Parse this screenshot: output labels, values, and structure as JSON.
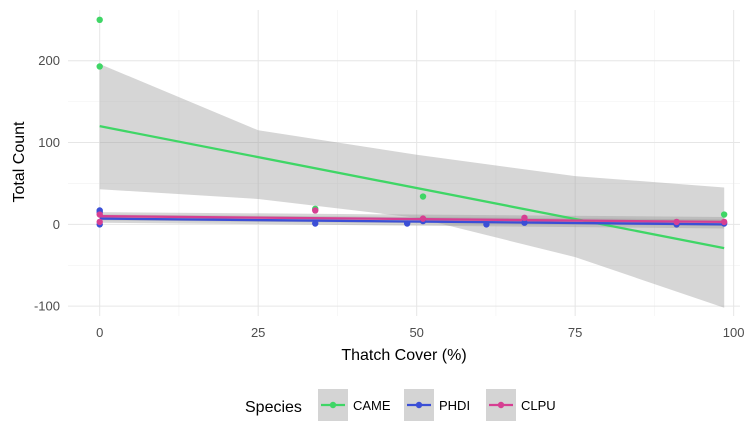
{
  "chart_data": {
    "type": "scatter",
    "title": "",
    "xlabel": "Thatch Cover (%)",
    "ylabel": "Total Count",
    "xlim": [
      -5,
      101
    ],
    "ylim": [
      -112,
      262
    ],
    "xticks": [
      0,
      25,
      50,
      75,
      100
    ],
    "yticks": [
      -100,
      0,
      100,
      200
    ],
    "grid": true,
    "legend": {
      "title": "Species",
      "position": "bottom"
    },
    "series": [
      {
        "name": "CAME",
        "color": "#3fd666",
        "points": [
          [
            0,
            250
          ],
          [
            0,
            193
          ],
          [
            34,
            19
          ],
          [
            51,
            34
          ],
          [
            98.5,
            12
          ]
        ],
        "fit": {
          "x": [
            0,
            98.5
          ],
          "y": [
            120,
            -29
          ]
        },
        "band": {
          "x": [
            0,
            25,
            50,
            75,
            98.5
          ],
          "lower": [
            43,
            31,
            8,
            -40,
            -102
          ],
          "upper": [
            196,
            115,
            85,
            59,
            45
          ]
        }
      },
      {
        "name": "PHDI",
        "color": "#3b4fd6",
        "points": [
          [
            0,
            0
          ],
          [
            0,
            15
          ],
          [
            0,
            17
          ],
          [
            34,
            1
          ],
          [
            48.5,
            1
          ],
          [
            51,
            4
          ],
          [
            61,
            0
          ],
          [
            67,
            2
          ],
          [
            91,
            0
          ],
          [
            98.5,
            1
          ]
        ],
        "fit": {
          "x": [
            0,
            98.5
          ],
          "y": [
            7,
            0
          ]
        },
        "band": {
          "x": [
            0,
            98.5
          ],
          "lower": [
            2,
            -5
          ],
          "upper": [
            12,
            6
          ]
        }
      },
      {
        "name": "CLPU",
        "color": "#d63f92",
        "points": [
          [
            0,
            3
          ],
          [
            0,
            12
          ],
          [
            34,
            17
          ],
          [
            51,
            7
          ],
          [
            67,
            8
          ],
          [
            91,
            3
          ],
          [
            98.5,
            3
          ]
        ],
        "fit": {
          "x": [
            0,
            98.5
          ],
          "y": [
            10,
            3
          ]
        },
        "band": {
          "x": [
            0,
            98.5
          ],
          "lower": [
            5,
            -2
          ],
          "upper": [
            15,
            9
          ]
        }
      }
    ]
  }
}
